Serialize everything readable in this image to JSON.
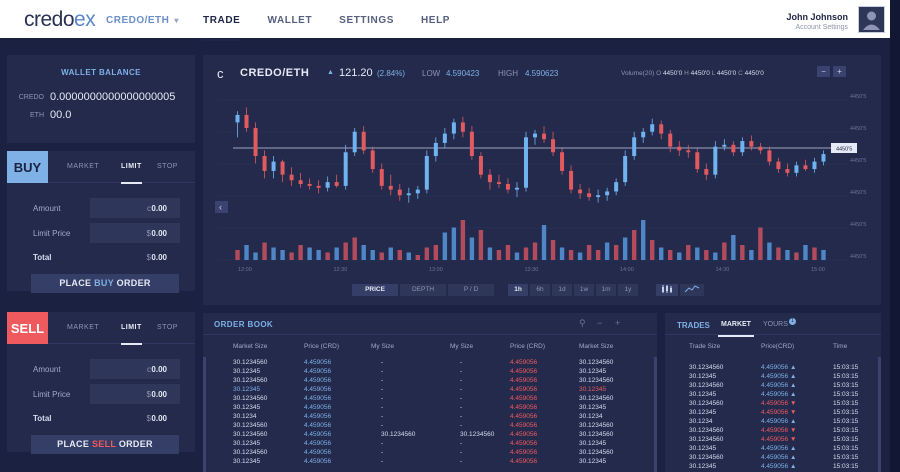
{
  "header": {
    "logo_main": "credo",
    "logo_ex": "ex",
    "pair": "CREDO/ETH",
    "nav": [
      "TRADE",
      "WALLET",
      "SETTINGS",
      "HELP"
    ],
    "user_name": "John Johnson",
    "user_sub": "Account Settings",
    "colors": {
      "bg": "#1b2140",
      "panel": "#232a4c",
      "accent_blue": "#7fb0e6",
      "accent_red": "#ef5a5f"
    }
  },
  "wallet": {
    "title": "WALLET BALANCE",
    "rows": [
      {
        "label": "CREDO",
        "value": "0.0000000000000000005"
      },
      {
        "label": "ETH",
        "value": "00.0"
      }
    ]
  },
  "buy": {
    "side": "BUY",
    "tabs": [
      "MARKET",
      "LIMIT",
      "STOP"
    ],
    "active_tab": "LIMIT",
    "amount_label": "Amount",
    "amount_unit": "c",
    "amount_value": "0.00",
    "price_label": "Limit Price",
    "price_unit": "$",
    "price_value": "0.00",
    "total_label": "Total",
    "total_unit": "$",
    "total_value": "0.00",
    "place_pre": "PLACE ",
    "place_word": "BUY",
    "place_post": " ORDER"
  },
  "sell": {
    "side": "SELL",
    "tabs": [
      "MARKET",
      "LIMIT",
      "STOP"
    ],
    "active_tab": "LIMIT",
    "amount_label": "Amount",
    "amount_unit": "c",
    "amount_value": "0.00",
    "price_label": "Limit Price",
    "price_unit": "$",
    "price_value": "0.00",
    "total_label": "Total",
    "total_unit": "$",
    "total_value": "0.00",
    "place_pre": "PLACE ",
    "place_word": "SELL",
    "place_post": " ORDER"
  },
  "chart": {
    "logo_glyph": "c",
    "pair": "CREDO/ETH",
    "arrow": "▲",
    "price": "121.20",
    "pct": "(2.84%)",
    "low_label": "LOW",
    "low_value": "4.590423",
    "high_label": "HIGH",
    "high_value": "4.590623",
    "volume_label": "Volume(20)",
    "ohlc": [
      {
        "k": "O",
        "v": "4450'0"
      },
      {
        "k": "H",
        "v": "4450'0"
      },
      {
        "k": "L",
        "v": "4450'0"
      },
      {
        "k": "C",
        "v": "4450'0"
      }
    ],
    "zoom_out": "−",
    "zoom_in": "+",
    "back": "‹",
    "price_tag": "4450'5",
    "y_ticks": [
      "4450'5",
      "4450'5",
      "4450'5",
      "4450'5",
      "4450'5",
      "4450'5"
    ],
    "x_ticks": [
      "12:00",
      "12:30",
      "13:00",
      "13:30",
      "14:00",
      "14:30",
      "15:00"
    ],
    "view_buttons": [
      "PRICE",
      "DEPTH",
      "P / D"
    ],
    "active_view": "PRICE",
    "range_buttons": [
      "1h",
      "6h",
      "1d",
      "1w",
      "1m",
      "1y"
    ],
    "active_range": "1h"
  },
  "chart_data": {
    "type": "candlestick",
    "title": "CREDO/ETH",
    "candles": [
      [
        126.4,
        127.0,
        125.6,
        126.8
      ],
      [
        126.8,
        127.2,
        125.9,
        126.1
      ],
      [
        126.1,
        126.4,
        124.2,
        124.6
      ],
      [
        124.6,
        124.9,
        123.4,
        123.8
      ],
      [
        123.8,
        124.6,
        123.4,
        124.3
      ],
      [
        124.3,
        124.4,
        123.2,
        123.6
      ],
      [
        123.6,
        124.0,
        123.0,
        123.3
      ],
      [
        123.3,
        123.7,
        122.9,
        123.1
      ],
      [
        123.1,
        123.4,
        122.8,
        123.0
      ],
      [
        123.0,
        123.3,
        122.6,
        122.9
      ],
      [
        122.9,
        123.5,
        122.7,
        123.2
      ],
      [
        123.2,
        123.6,
        122.9,
        123.0
      ],
      [
        123.0,
        125.2,
        122.8,
        124.8
      ],
      [
        124.8,
        126.1,
        124.6,
        125.9
      ],
      [
        125.9,
        126.2,
        124.7,
        124.9
      ],
      [
        124.9,
        125.1,
        123.7,
        123.9
      ],
      [
        123.9,
        124.2,
        122.8,
        123.0
      ],
      [
        123.0,
        123.6,
        122.5,
        122.8
      ],
      [
        122.8,
        123.1,
        122.2,
        122.5
      ],
      [
        122.5,
        122.9,
        122.1,
        122.6
      ],
      [
        122.6,
        123.0,
        122.3,
        122.8
      ],
      [
        122.8,
        124.9,
        122.6,
        124.6
      ],
      [
        124.6,
        125.6,
        124.3,
        125.3
      ],
      [
        125.3,
        126.1,
        125.0,
        125.8
      ],
      [
        125.8,
        126.6,
        125.5,
        126.4
      ],
      [
        126.4,
        126.7,
        125.6,
        125.9
      ],
      [
        125.9,
        126.2,
        124.4,
        124.6
      ],
      [
        124.6,
        124.8,
        123.4,
        123.6
      ],
      [
        123.6,
        123.9,
        122.8,
        123.2
      ],
      [
        123.2,
        123.6,
        122.9,
        123.1
      ],
      [
        123.1,
        123.4,
        122.6,
        122.8
      ],
      [
        122.8,
        123.2,
        122.4,
        122.9
      ],
      [
        122.9,
        125.9,
        122.7,
        125.6
      ],
      [
        125.6,
        126.0,
        125.2,
        125.8
      ],
      [
        125.8,
        126.2,
        125.3,
        125.5
      ],
      [
        125.5,
        125.9,
        124.6,
        124.8
      ],
      [
        124.8,
        125.0,
        123.6,
        123.8
      ],
      [
        123.8,
        124.1,
        122.6,
        122.8
      ],
      [
        122.8,
        123.1,
        122.3,
        122.6
      ],
      [
        122.6,
        122.9,
        122.2,
        122.4
      ],
      [
        122.4,
        122.8,
        122.1,
        122.5
      ],
      [
        122.5,
        122.9,
        122.2,
        122.7
      ],
      [
        122.7,
        123.4,
        122.5,
        123.2
      ],
      [
        123.2,
        124.9,
        123.0,
        124.6
      ],
      [
        124.6,
        125.9,
        124.4,
        125.6
      ],
      [
        125.6,
        126.1,
        125.3,
        125.9
      ],
      [
        125.9,
        126.6,
        125.7,
        126.3
      ],
      [
        126.3,
        126.5,
        125.5,
        125.8
      ],
      [
        125.8,
        126.0,
        124.8,
        125.1
      ],
      [
        125.1,
        125.4,
        124.6,
        124.9
      ],
      [
        124.9,
        125.2,
        124.5,
        124.8
      ],
      [
        124.8,
        125.0,
        123.7,
        123.9
      ],
      [
        123.9,
        124.2,
        123.3,
        123.6
      ],
      [
        123.6,
        125.4,
        123.4,
        125.1
      ],
      [
        125.1,
        125.5,
        124.9,
        125.2
      ],
      [
        125.2,
        125.4,
        124.6,
        124.8
      ],
      [
        124.8,
        125.6,
        124.6,
        125.4
      ],
      [
        125.4,
        125.7,
        124.9,
        125.1
      ],
      [
        125.1,
        125.3,
        124.7,
        124.9
      ],
      [
        124.9,
        125.1,
        124.1,
        124.3
      ],
      [
        124.3,
        124.5,
        123.7,
        123.9
      ],
      [
        123.9,
        124.2,
        123.5,
        123.7
      ],
      [
        123.7,
        124.3,
        123.5,
        124.1
      ],
      [
        124.1,
        124.4,
        123.8,
        123.9
      ],
      [
        123.9,
        124.5,
        123.7,
        124.3
      ],
      [
        124.3,
        124.9,
        124.1,
        124.7
      ]
    ],
    "volumes": [
      4,
      6,
      3,
      7,
      5,
      4,
      3,
      6,
      5,
      4,
      3,
      5,
      7,
      9,
      6,
      4,
      3,
      5,
      4,
      3,
      2,
      5,
      6,
      11,
      13,
      16,
      9,
      12,
      5,
      4,
      6,
      3,
      5,
      7,
      14,
      8,
      5,
      4,
      3,
      6,
      4,
      7,
      6,
      9,
      12,
      16,
      8,
      5,
      4,
      3,
      6,
      5,
      4,
      3,
      7,
      10,
      6,
      4,
      13,
      7,
      5,
      4,
      3,
      6,
      5,
      4
    ],
    "volume_up": [
      false,
      true,
      true,
      false,
      true,
      true,
      false,
      false,
      true,
      true,
      false,
      true,
      false,
      false,
      true,
      true,
      false,
      true,
      false,
      true,
      false,
      false,
      false,
      true,
      true,
      false,
      true,
      false,
      true,
      false,
      false,
      true,
      false,
      false,
      true,
      false,
      true,
      false,
      true,
      false,
      false,
      true,
      false,
      true,
      false,
      true,
      false,
      true,
      false,
      true,
      false,
      true,
      false,
      true,
      false,
      true,
      false,
      true,
      false,
      true,
      false,
      true,
      false,
      true,
      false,
      true
    ]
  },
  "order_book": {
    "title": "ORDER BOOK",
    "columns": [
      "Market Size",
      "Price (CRD)",
      "My Size",
      "My Size",
      "Price (CRD)",
      "Market Size"
    ],
    "rows": [
      [
        "30.1234560",
        "4.459056",
        "-",
        "-",
        "4.459056",
        "30.1234560"
      ],
      [
        "30.12345",
        "4.459056",
        "-",
        "-",
        "4.459056",
        "30.12345"
      ],
      [
        "30.1234560",
        "4.459056",
        "-",
        "-",
        "4.459056",
        "30.1234560"
      ],
      [
        "30.12345",
        "4.459056",
        "-",
        "-",
        "4.459056",
        "30.12345"
      ],
      [
        "30.1234560",
        "4.459056",
        "-",
        "-",
        "4.459056",
        "30.1234560"
      ],
      [
        "30.12345",
        "4.459056",
        "-",
        "-",
        "4.459056",
        "30.12345"
      ],
      [
        "30.1234",
        "4.459056",
        "-",
        "-",
        "4.459056",
        "30.1234"
      ],
      [
        "30.1234560",
        "4.459056",
        "-",
        "-",
        "4.459056",
        "30.1234560"
      ],
      [
        "30.1234560",
        "4.459056",
        "30.1234560",
        "30.1234560",
        "4.459056",
        "30.1234560"
      ],
      [
        "30.12345",
        "4.459056",
        "-",
        "-",
        "4.459056",
        "30.12345"
      ],
      [
        "30.1234560",
        "4.459056",
        "-",
        "-",
        "4.459056",
        "30.1234560"
      ],
      [
        "30.12345",
        "4.459056",
        "-",
        "-",
        "4.459056",
        "30.12345"
      ]
    ],
    "highlight_rows": [
      3
    ]
  },
  "trades": {
    "title": "TRADES",
    "tabs": [
      "MARKET",
      "YOURS"
    ],
    "active_tab": "MARKET",
    "badge": "1",
    "columns": [
      "Trade Size",
      "Price(CRD)",
      "Time"
    ],
    "rows": [
      [
        "30.1234560",
        "4.459056",
        "▲",
        "15:03:15",
        "up"
      ],
      [
        "30.12345",
        "4.459056",
        "▲",
        "15:03:15",
        "up"
      ],
      [
        "30.1234560",
        "4.459056",
        "▲",
        "15:03:15",
        "up"
      ],
      [
        "30.12345",
        "4.459056",
        "▲",
        "15:03:15",
        "up"
      ],
      [
        "30.1234560",
        "4.459056",
        "▼",
        "15:03:15",
        "down"
      ],
      [
        "30.12345",
        "4.459056",
        "▼",
        "15:03:15",
        "down"
      ],
      [
        "30.1234",
        "4.459056",
        "▲",
        "15:03:15",
        "up"
      ],
      [
        "30.1234560",
        "4.459056",
        "▼",
        "15:03:15",
        "down"
      ],
      [
        "30.1234560",
        "4.459056",
        "▼",
        "15:03:15",
        "down"
      ],
      [
        "30.12345",
        "4.459056",
        "▲",
        "15:03:15",
        "up"
      ],
      [
        "30.1234560",
        "4.459056",
        "▲",
        "15:03:15",
        "up"
      ],
      [
        "30.12345",
        "4.459056",
        "▲",
        "15:03:15",
        "up"
      ]
    ]
  }
}
